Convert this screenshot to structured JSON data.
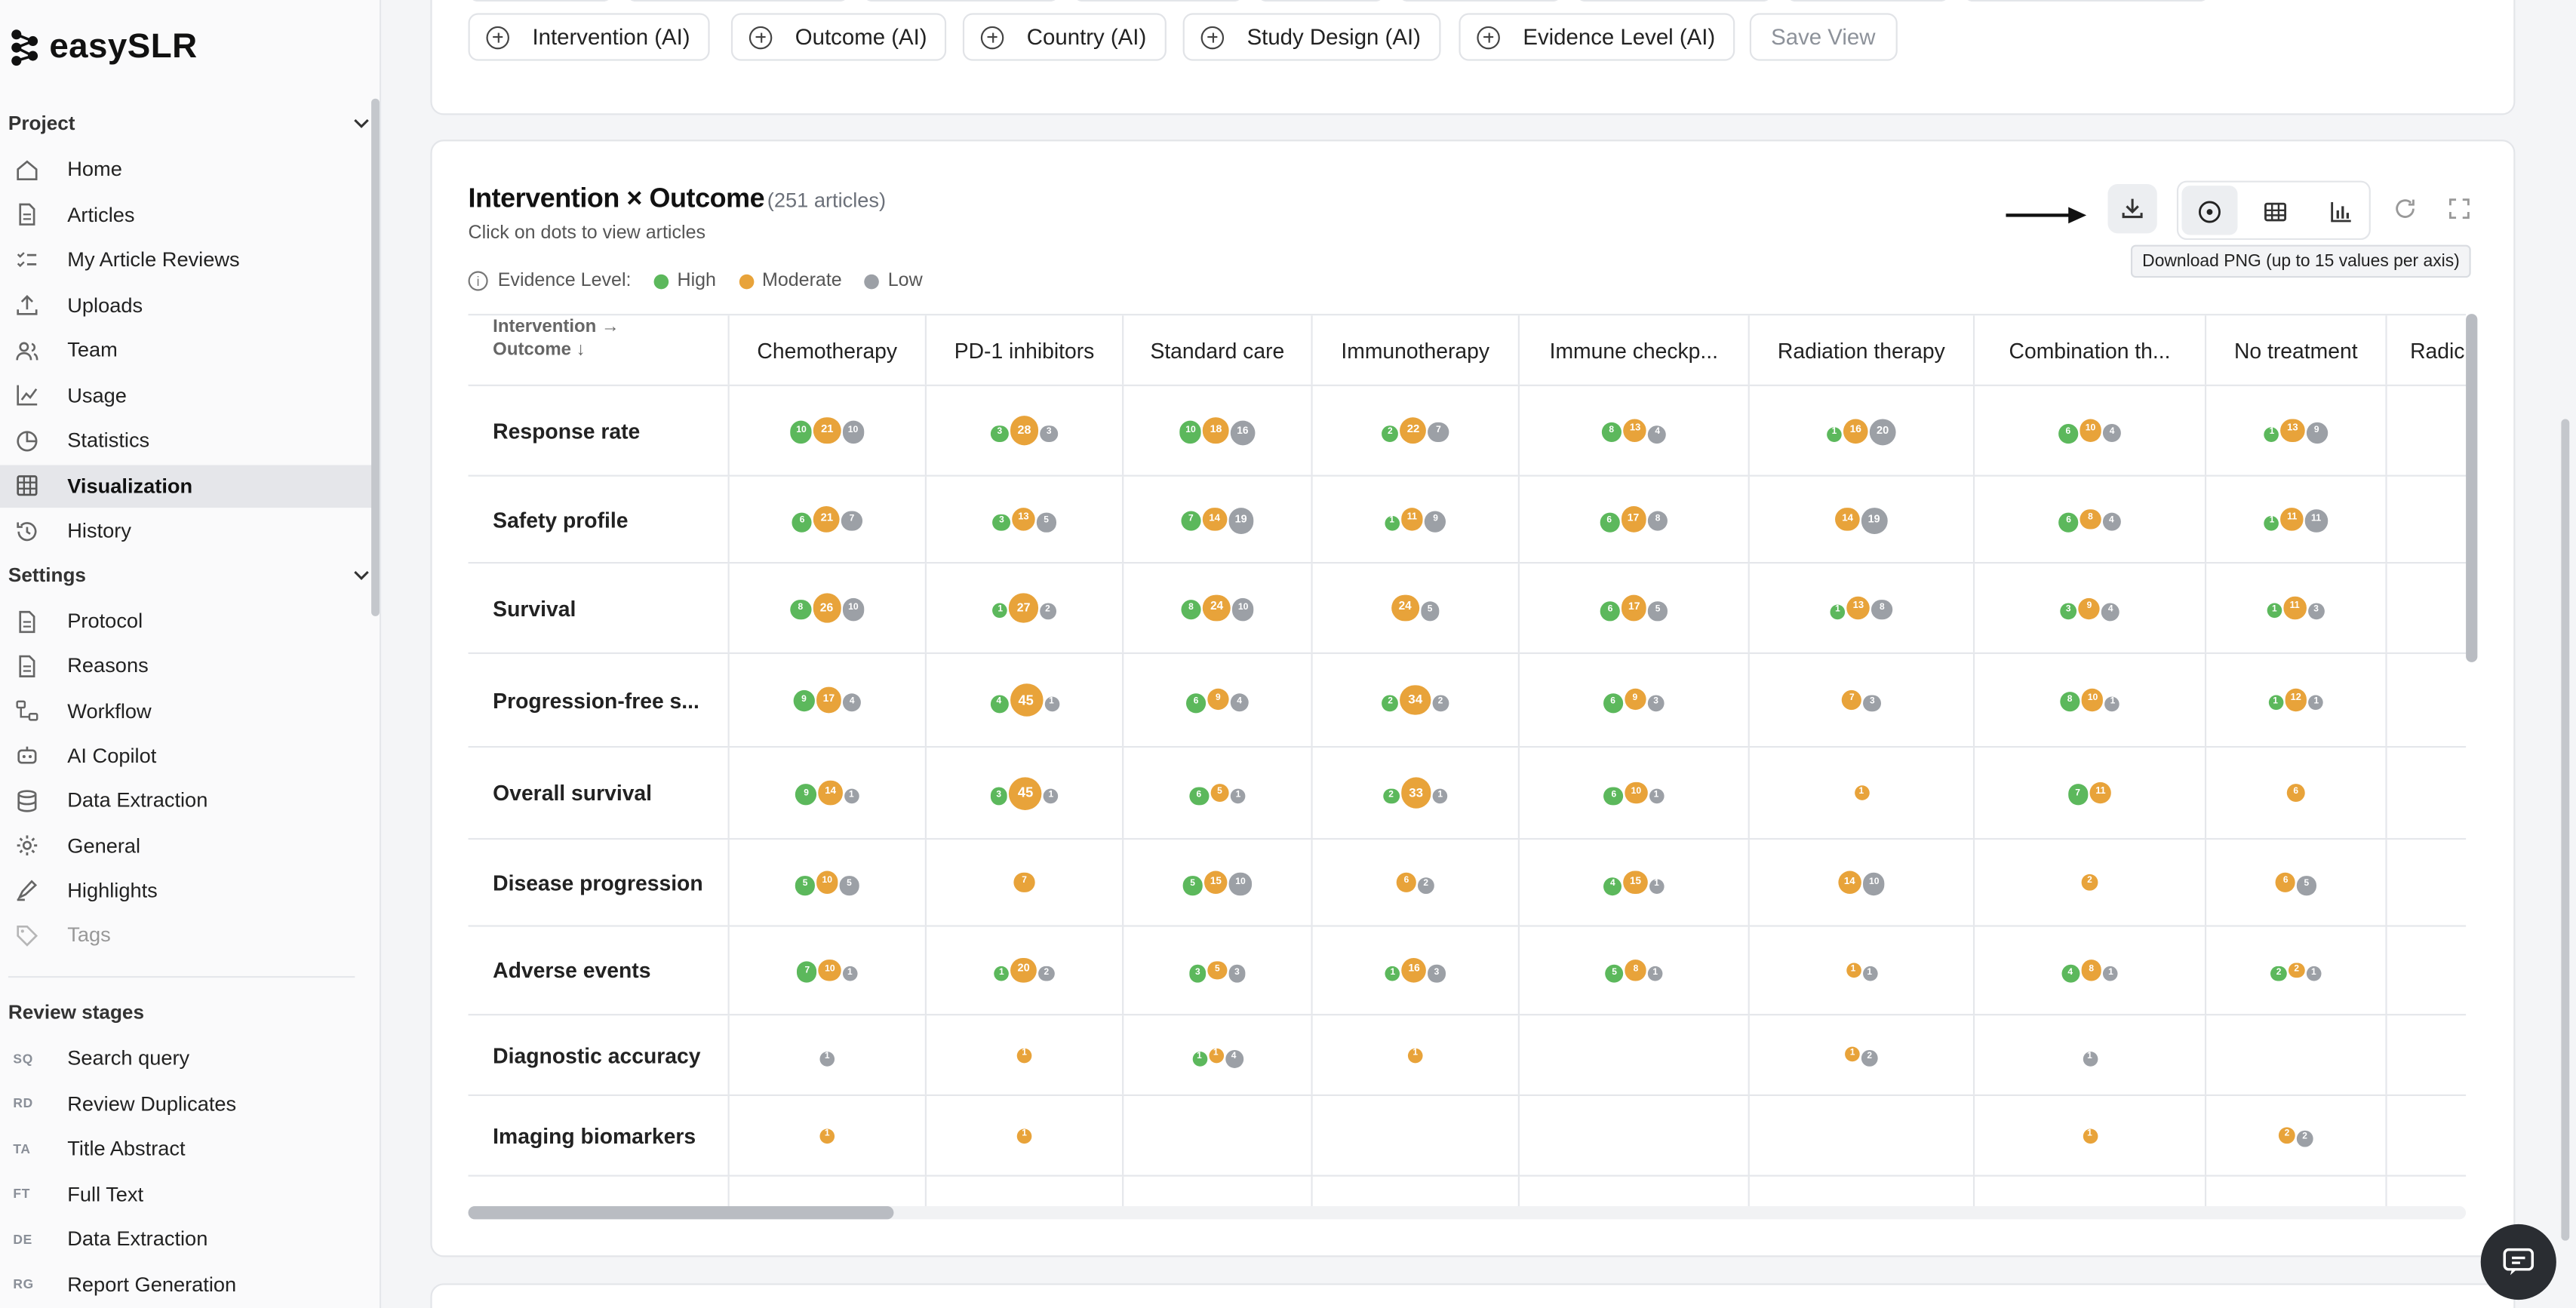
{
  "brand": {
    "name": "easySLR"
  },
  "sidebar": {
    "project_header": "Project",
    "project_items": [
      {
        "label": "Home",
        "icon": "home-icon"
      },
      {
        "label": "Articles",
        "icon": "document-icon"
      },
      {
        "label": "My Article Reviews",
        "icon": "checklist-icon"
      },
      {
        "label": "Uploads",
        "icon": "upload-icon"
      },
      {
        "label": "Team",
        "icon": "users-icon"
      },
      {
        "label": "Usage",
        "icon": "line-chart-icon"
      },
      {
        "label": "Statistics",
        "icon": "pie-chart-icon"
      },
      {
        "label": "Visualization",
        "icon": "grid-icon",
        "active": true
      },
      {
        "label": "History",
        "icon": "history-icon"
      }
    ],
    "settings_header": "Settings",
    "settings_items": [
      {
        "label": "Protocol",
        "icon": "document-icon"
      },
      {
        "label": "Reasons",
        "icon": "document-icon"
      },
      {
        "label": "Workflow",
        "icon": "workflow-icon"
      },
      {
        "label": "AI Copilot",
        "icon": "robot-icon"
      },
      {
        "label": "Data Extraction",
        "icon": "database-icon"
      },
      {
        "label": "General",
        "icon": "gear-icon"
      },
      {
        "label": "Highlights",
        "icon": "highlighter-icon"
      },
      {
        "label": "Tags",
        "icon": "tag-icon"
      }
    ],
    "stages_header": "Review stages",
    "stages": [
      {
        "code": "SQ",
        "label": "Search query"
      },
      {
        "code": "RD",
        "label": "Review Duplicates"
      },
      {
        "code": "TA",
        "label": "Title Abstract"
      },
      {
        "code": "FT",
        "label": "Full Text"
      },
      {
        "code": "DE",
        "label": "Data Extraction"
      },
      {
        "code": "RG",
        "label": "Report Generation"
      }
    ]
  },
  "filters": {
    "chips": [
      "Intervention (AI)",
      "Outcome (AI)",
      "Country (AI)",
      "Study Design (AI)",
      "Evidence Level (AI)"
    ],
    "save_view": "Save View"
  },
  "matrix": {
    "title": "Intervention × Outcome",
    "count": "(251 articles)",
    "hint": "Click on dots to view articles",
    "legend_label": "Evidence Level:",
    "levels": [
      {
        "name": "High",
        "color": "#5cb85c"
      },
      {
        "name": "Moderate",
        "color": "#e8a33a"
      },
      {
        "name": "Low",
        "color": "#9ca0a6"
      }
    ],
    "corner_line1": "Intervention →",
    "corner_line2": "Outcome ↓",
    "tooltip": "Download PNG (up to 15 values per axis)",
    "columns": [
      "Chemotherapy",
      "PD-1 inhibitors",
      "Standard care",
      "Immunotherapy",
      "Immune checkp...",
      "Radiation therapy",
      "Combination th...",
      "No treatment",
      "Radic"
    ],
    "rows": [
      {
        "label": "Response rate",
        "cells": [
          [
            10,
            21,
            10
          ],
          [
            3,
            28,
            3
          ],
          [
            10,
            18,
            16
          ],
          [
            2,
            22,
            7
          ],
          [
            8,
            13,
            4
          ],
          [
            1,
            16,
            20
          ],
          [
            6,
            10,
            4
          ],
          [
            1,
            13,
            9
          ],
          [
            0,
            0,
            0
          ]
        ]
      },
      {
        "label": "Safety profile",
        "cells": [
          [
            6,
            21,
            7
          ],
          [
            3,
            13,
            5
          ],
          [
            7,
            14,
            19
          ],
          [
            1,
            11,
            9
          ],
          [
            6,
            17,
            8
          ],
          [
            0,
            14,
            19
          ],
          [
            6,
            8,
            4
          ],
          [
            1,
            11,
            11
          ],
          [
            0,
            0,
            0
          ]
        ]
      },
      {
        "label": "Survival",
        "cells": [
          [
            8,
            26,
            10
          ],
          [
            1,
            27,
            2
          ],
          [
            8,
            24,
            10
          ],
          [
            0,
            24,
            5
          ],
          [
            6,
            17,
            5
          ],
          [
            1,
            13,
            8
          ],
          [
            3,
            9,
            4
          ],
          [
            1,
            11,
            3
          ],
          [
            0,
            0,
            0
          ]
        ]
      },
      {
        "label": "Progression-free s...",
        "cells": [
          [
            9,
            17,
            4
          ],
          [
            4,
            45,
            1
          ],
          [
            6,
            9,
            4
          ],
          [
            2,
            34,
            2
          ],
          [
            6,
            9,
            3
          ],
          [
            0,
            7,
            3
          ],
          [
            8,
            10,
            1
          ],
          [
            1,
            12,
            1
          ],
          [
            0,
            0,
            0
          ]
        ]
      },
      {
        "label": "Overall survival",
        "cells": [
          [
            9,
            14,
            1
          ],
          [
            3,
            45,
            1
          ],
          [
            6,
            5,
            1
          ],
          [
            2,
            33,
            1
          ],
          [
            6,
            10,
            1
          ],
          [
            0,
            1,
            0
          ],
          [
            7,
            11,
            0
          ],
          [
            0,
            6,
            0
          ],
          [
            0,
            0,
            0
          ]
        ]
      },
      {
        "label": "Disease progression",
        "cells": [
          [
            5,
            10,
            5
          ],
          [
            0,
            7,
            0
          ],
          [
            5,
            15,
            10
          ],
          [
            0,
            6,
            2
          ],
          [
            4,
            15,
            1
          ],
          [
            0,
            14,
            10
          ],
          [
            0,
            2,
            0
          ],
          [
            0,
            6,
            5
          ],
          [
            0,
            0,
            0
          ]
        ]
      },
      {
        "label": "Adverse events",
        "cells": [
          [
            7,
            10,
            1
          ],
          [
            1,
            20,
            2
          ],
          [
            3,
            5,
            3
          ],
          [
            1,
            16,
            3
          ],
          [
            5,
            8,
            1
          ],
          [
            0,
            1,
            1
          ],
          [
            4,
            8,
            1
          ],
          [
            2,
            2,
            1
          ],
          [
            0,
            0,
            0
          ]
        ]
      },
      {
        "label": "Diagnostic accuracy",
        "cells": [
          [
            0,
            0,
            1
          ],
          [
            0,
            1,
            0
          ],
          [
            1,
            1,
            4
          ],
          [
            0,
            1,
            0
          ],
          [
            0,
            0,
            0
          ],
          [
            0,
            1,
            2
          ],
          [
            0,
            0,
            1
          ],
          [
            0,
            0,
            0
          ],
          [
            0,
            0,
            0
          ]
        ]
      },
      {
        "label": "Imaging biomarkers",
        "cells": [
          [
            0,
            1,
            0
          ],
          [
            0,
            1,
            0
          ],
          [
            0,
            0,
            0
          ],
          [
            0,
            0,
            0
          ],
          [
            0,
            0,
            0
          ],
          [
            0,
            0,
            0
          ],
          [
            0,
            1,
            0
          ],
          [
            0,
            2,
            2
          ],
          [
            0,
            0,
            0
          ]
        ]
      }
    ]
  }
}
